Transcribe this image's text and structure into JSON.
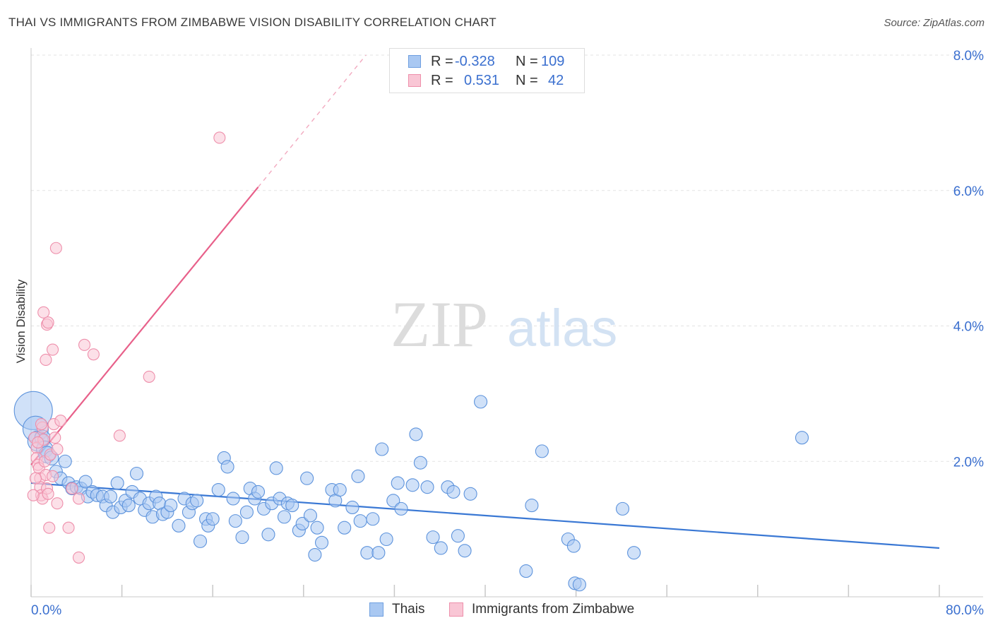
{
  "header": {
    "title": "THAI VS IMMIGRANTS FROM ZIMBABWE VISION DISABILITY CORRELATION CHART",
    "source": "Source: ZipAtlas.com"
  },
  "watermark": {
    "zip": "ZIP",
    "atlas": "atlas"
  },
  "legend_stats": [
    {
      "r_label": "R =",
      "r_value": "-0.328",
      "n_label": "N =",
      "n_value": "109",
      "color": "#a9c8f2",
      "border": "#6f9fe0"
    },
    {
      "r_label": "R =",
      "r_value": "0.531",
      "n_label": "N =",
      "n_value": "42",
      "color": "#f9c6d5",
      "border": "#ee8fab"
    }
  ],
  "bottom_legend": [
    {
      "label": "Thais",
      "color": "#a9c8f2",
      "border": "#6f9fe0"
    },
    {
      "label": "Immigrants from Zimbabwe",
      "color": "#f9c6d5",
      "border": "#ee8fab"
    }
  ],
  "chart_data": {
    "type": "scatter",
    "title": "THAI VS IMMIGRANTS FROM ZIMBABWE VISION DISABILITY CORRELATION CHART",
    "ylabel": "Vision Disability",
    "xlabel": "",
    "xlim": [
      0,
      80
    ],
    "ylim": [
      0,
      8.0
    ],
    "x_tick_labels": [
      "0.0%",
      "80.0%"
    ],
    "y_ticks": [
      2.0,
      4.0,
      6.0,
      8.0
    ],
    "y_tick_labels": [
      "2.0%",
      "4.0%",
      "6.0%",
      "8.0%"
    ],
    "grid": true,
    "colors": {
      "thais": "#3a78d4",
      "zimbabwe": "#e8608a",
      "tick_label": "#3a6fcf"
    },
    "series": [
      {
        "name": "Thais",
        "trend": {
          "x": [
            0,
            80
          ],
          "y": [
            1.68,
            0.72
          ]
        },
        "points": [
          [
            0.2,
            2.75,
            3
          ],
          [
            0.4,
            2.48,
            2
          ],
          [
            0.6,
            2.3,
            1.6
          ],
          [
            1.0,
            2.35,
            1.2
          ],
          [
            1.2,
            2.18,
            1.3
          ],
          [
            1.4,
            2.1,
            1.3
          ],
          [
            1.8,
            2.05,
            1.1
          ],
          [
            2.2,
            1.85,
            1
          ],
          [
            2.6,
            1.75,
            1
          ],
          [
            3.0,
            2.0,
            1
          ],
          [
            3.3,
            1.68,
            1
          ],
          [
            3.6,
            1.6,
            1
          ],
          [
            4.0,
            1.62,
            1
          ],
          [
            4.4,
            1.6,
            1
          ],
          [
            4.8,
            1.7,
            1
          ],
          [
            5.0,
            1.48,
            1
          ],
          [
            5.4,
            1.55,
            1
          ],
          [
            5.8,
            1.5,
            1
          ],
          [
            6.3,
            1.48,
            1
          ],
          [
            6.6,
            1.35,
            1
          ],
          [
            7.0,
            1.48,
            1
          ],
          [
            7.2,
            1.25,
            1
          ],
          [
            7.6,
            1.68,
            1
          ],
          [
            7.9,
            1.32,
            1
          ],
          [
            8.3,
            1.42,
            1
          ],
          [
            8.6,
            1.35,
            1
          ],
          [
            8.9,
            1.55,
            1
          ],
          [
            9.3,
            1.82,
            1
          ],
          [
            9.6,
            1.45,
            1
          ],
          [
            10.0,
            1.28,
            1
          ],
          [
            10.4,
            1.38,
            1
          ],
          [
            10.7,
            1.18,
            1
          ],
          [
            11.0,
            1.48,
            1
          ],
          [
            11.3,
            1.38,
            1
          ],
          [
            11.6,
            1.22,
            1
          ],
          [
            12.0,
            1.25,
            1
          ],
          [
            12.3,
            1.35,
            1
          ],
          [
            13.0,
            1.05,
            1
          ],
          [
            13.5,
            1.45,
            1
          ],
          [
            13.9,
            1.25,
            1
          ],
          [
            14.2,
            1.38,
            1
          ],
          [
            14.6,
            1.42,
            1
          ],
          [
            14.9,
            0.82,
            1
          ],
          [
            15.4,
            1.15,
            1
          ],
          [
            15.6,
            1.05,
            1
          ],
          [
            16.0,
            1.15,
            1
          ],
          [
            16.5,
            1.58,
            1
          ],
          [
            17.0,
            2.05,
            1
          ],
          [
            17.3,
            1.92,
            1
          ],
          [
            17.8,
            1.45,
            1
          ],
          [
            18.0,
            1.12,
            1
          ],
          [
            18.6,
            0.88,
            1
          ],
          [
            19.0,
            1.25,
            1
          ],
          [
            19.3,
            1.6,
            1
          ],
          [
            19.7,
            1.45,
            1
          ],
          [
            20.0,
            1.55,
            1
          ],
          [
            20.5,
            1.3,
            1
          ],
          [
            20.9,
            0.92,
            1
          ],
          [
            21.2,
            1.38,
            1
          ],
          [
            21.6,
            1.9,
            1
          ],
          [
            21.9,
            1.45,
            1
          ],
          [
            22.3,
            1.18,
            1
          ],
          [
            22.6,
            1.38,
            1
          ],
          [
            23.0,
            1.35,
            1
          ],
          [
            23.6,
            0.98,
            1
          ],
          [
            23.9,
            1.08,
            1
          ],
          [
            24.3,
            1.75,
            1
          ],
          [
            24.6,
            1.2,
            1
          ],
          [
            25.0,
            0.62,
            1
          ],
          [
            25.2,
            1.02,
            1
          ],
          [
            25.6,
            0.8,
            1
          ],
          [
            26.5,
            1.58,
            1
          ],
          [
            26.8,
            1.42,
            1
          ],
          [
            27.2,
            1.58,
            1
          ],
          [
            27.6,
            1.02,
            1
          ],
          [
            28.3,
            1.32,
            1
          ],
          [
            28.8,
            1.78,
            1
          ],
          [
            29.0,
            1.12,
            1
          ],
          [
            29.6,
            0.65,
            1
          ],
          [
            30.1,
            1.15,
            1
          ],
          [
            30.6,
            0.65,
            1
          ],
          [
            30.9,
            2.18,
            1
          ],
          [
            31.3,
            0.85,
            1
          ],
          [
            31.9,
            1.42,
            1
          ],
          [
            32.3,
            1.68,
            1
          ],
          [
            32.6,
            1.3,
            1
          ],
          [
            33.6,
            1.65,
            1
          ],
          [
            33.9,
            2.4,
            1
          ],
          [
            34.3,
            1.98,
            1
          ],
          [
            34.9,
            1.62,
            1
          ],
          [
            35.4,
            0.88,
            1
          ],
          [
            36.1,
            0.72,
            1
          ],
          [
            36.7,
            1.62,
            1
          ],
          [
            37.2,
            1.55,
            1
          ],
          [
            37.6,
            0.9,
            1
          ],
          [
            38.2,
            0.68,
            1
          ],
          [
            38.7,
            1.52,
            1
          ],
          [
            39.6,
            2.88,
            1
          ],
          [
            43.6,
            0.38,
            1
          ],
          [
            44.1,
            1.35,
            1
          ],
          [
            45.0,
            2.15,
            1
          ],
          [
            47.3,
            0.85,
            1
          ],
          [
            47.8,
            0.75,
            1
          ],
          [
            47.9,
            0.2,
            1
          ],
          [
            48.3,
            0.18,
            1
          ],
          [
            52.1,
            1.3,
            1
          ],
          [
            53.1,
            0.65,
            1
          ],
          [
            67.9,
            2.35,
            1
          ]
        ]
      },
      {
        "name": "Immigrants from Zimbabwe",
        "trend": {
          "x": [
            0,
            20
          ],
          "y": [
            1.95,
            6.05
          ]
        },
        "trend_extension": {
          "x": [
            20,
            29.5
          ],
          "y": [
            6.05,
            8.0
          ]
        },
        "points": [
          [
            0.3,
            2.35
          ],
          [
            0.5,
            2.2
          ],
          [
            0.5,
            2.05
          ],
          [
            0.6,
            1.95
          ],
          [
            0.7,
            1.9
          ],
          [
            0.8,
            1.75
          ],
          [
            0.8,
            1.62
          ],
          [
            0.9,
            1.5
          ],
          [
            1.0,
            1.45
          ],
          [
            1.0,
            2.5
          ],
          [
            1.1,
            2.32
          ],
          [
            1.2,
            2.0
          ],
          [
            1.3,
            1.8
          ],
          [
            1.4,
            1.6
          ],
          [
            1.5,
            1.52
          ],
          [
            1.1,
            4.2
          ],
          [
            1.3,
            3.5
          ],
          [
            1.4,
            4.02
          ],
          [
            1.5,
            4.05
          ],
          [
            1.7,
            2.1
          ],
          [
            1.6,
            1.02
          ],
          [
            1.9,
            1.78
          ],
          [
            2.0,
            2.55
          ],
          [
            2.1,
            2.35
          ],
          [
            2.3,
            1.38
          ],
          [
            1.9,
            3.65
          ],
          [
            2.2,
            5.15
          ],
          [
            2.3,
            2.18
          ],
          [
            2.6,
            2.6
          ],
          [
            3.3,
            1.02
          ],
          [
            3.6,
            1.6
          ],
          [
            4.2,
            0.58
          ],
          [
            4.2,
            1.45
          ],
          [
            4.7,
            3.72
          ],
          [
            5.5,
            3.58
          ],
          [
            7.8,
            2.38
          ],
          [
            10.4,
            3.25
          ],
          [
            16.6,
            6.78
          ],
          [
            0.2,
            1.5
          ],
          [
            0.4,
            1.75
          ],
          [
            0.6,
            2.28
          ],
          [
            0.9,
            2.55
          ]
        ]
      }
    ]
  }
}
